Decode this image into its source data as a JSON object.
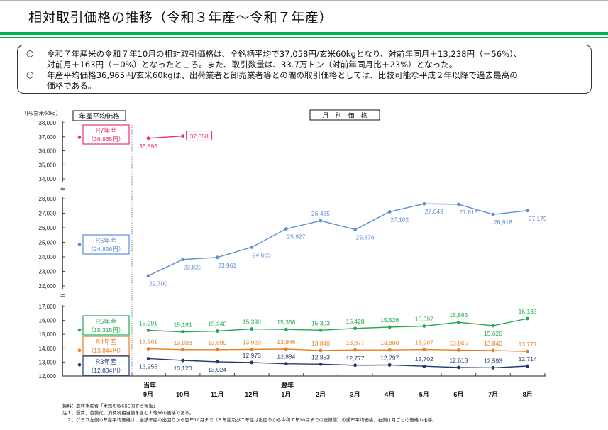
{
  "header": {
    "title": "相対取引価格の推移（令和３年産～令和７年産）"
  },
  "summary": {
    "bullet_glyph": "○",
    "lines": [
      "令和７年産米の令和７年10月の相対取引価格は、全銘柄平均で37,058円/玄米60kgとなり、対前年同月＋13,238円（＋56%）、",
      "対前月＋163円（＋0%）となったところ。また、取引数量は、33.7万トン（対前年同月比＋23%）となった。",
      "年産平均価格36,965円/玄米60kgは、出荷業者と卸売業者等との間の取引価格としては、比較可能な平成２年以降で過去最高の",
      "価格である。"
    ]
  },
  "footnotes": [
    "資料：農林水産省「米穀の取引に関する報告」",
    "注１：運賃、包装代、消費税相当額を含む１等米の価格である。",
    "　２：グラフ左側の年産平均価格は、当該年産の出回りから翌年10月まで（６年産及び７年産は出回りから令和７年10月までの速報値）の通年平均価格、右側は月ごとの価格の推移。"
  ],
  "chart_data": {
    "type": "line",
    "title": "相対取引価格の推移（令和３年産～令和７年産）",
    "ylabel": "（円/玄米60kg）",
    "xlabel": "",
    "left_panel_label": "年産平均価格",
    "right_panel_label": "月　別　価　格",
    "axis_break_glyph": "≈",
    "y_segments": [
      {
        "range": [
          34000,
          38000
        ],
        "ticks": [
          "38,000",
          "37,000",
          "36,000",
          "35,000",
          "34,000"
        ],
        "tick_values": [
          38000,
          37000,
          36000,
          35000,
          34000
        ]
      },
      {
        "range": [
          22000,
          28000
        ],
        "ticks": [
          "28,000",
          "27,000",
          "26,000",
          "25,000",
          "24,000",
          "23,000",
          "22,000"
        ],
        "tick_values": [
          28000,
          27000,
          26000,
          25000,
          24000,
          23000,
          22000
        ]
      },
      {
        "range": [
          12000,
          17000
        ],
        "ticks": [
          "17,000",
          "16,000",
          "15,000",
          "14,000",
          "13,000",
          "12,000"
        ],
        "tick_values": [
          17000,
          16000,
          15000,
          14000,
          13000,
          12000
        ]
      }
    ],
    "year_markers": [
      "当年",
      "翌年"
    ],
    "categories": [
      "9月",
      "10月",
      "11月",
      "12月",
      "1月",
      "2月",
      "3月",
      "4月",
      "5月",
      "6月",
      "7月",
      "8月"
    ],
    "grid": false,
    "series": [
      {
        "name": "R7年産",
        "annual_label": "R7年産",
        "annual_value_label": "（36,965円）",
        "annual_average": 36965,
        "color": "#e8326e",
        "segment": 0,
        "values": [
          36895,
          37058,
          null,
          null,
          null,
          null,
          null,
          null,
          null,
          null,
          null,
          null
        ],
        "labels": [
          "36,895",
          "37,058",
          "",
          "",
          "",
          "",
          "",
          "",
          "",
          "",
          "",
          ""
        ],
        "boxed_label_index": 1
      },
      {
        "name": "R6年産",
        "annual_label": "R6年産",
        "annual_value_label": "（24,856円）",
        "annual_average": 24856,
        "color": "#5b8fd6",
        "segment": 1,
        "values": [
          22700,
          23820,
          23961,
          24665,
          25927,
          26485,
          25876,
          27102,
          27649,
          27613,
          26918,
          27179
        ],
        "labels": [
          "22,700",
          "23,820",
          "23,961",
          "24,665",
          "25,927",
          "26,485",
          "25,876",
          "27,102",
          "27,649",
          "27,613",
          "26,918",
          "27,179"
        ]
      },
      {
        "name": "R5年産",
        "annual_label": "R5年産",
        "annual_value_label": "（15,315円）",
        "annual_average": 15315,
        "color": "#22a94f",
        "segment": 2,
        "values": [
          15291,
          15181,
          15240,
          15390,
          15358,
          15303,
          15428,
          15526,
          15597,
          15865,
          15626,
          16133
        ],
        "labels": [
          "15,291",
          "15,181",
          "15,240",
          "15,390",
          "15,358",
          "15,303",
          "15,428",
          "15,526",
          "15,597",
          "15,865",
          "15,626",
          "16,133"
        ]
      },
      {
        "name": "R4年産",
        "annual_label": "R4年産",
        "annual_value_label": "（13,844円）",
        "annual_average": 13844,
        "color": "#e67e22",
        "segment": 2,
        "values": [
          13961,
          13898,
          13899,
          13920,
          13946,
          13840,
          13877,
          13880,
          13907,
          13865,
          13840,
          13777
        ],
        "labels": [
          "13,961",
          "13,898",
          "13,899",
          "13,920",
          "13,946",
          "13,840",
          "13,877",
          "13,880",
          "13,907",
          "13,865",
          "13,840",
          "13,777"
        ]
      },
      {
        "name": "R3年産",
        "annual_label": "R3年産",
        "annual_value_label": "（12,804円）",
        "annual_average": 12804,
        "color": "#1f3a6e",
        "segment": 2,
        "values": [
          13255,
          13120,
          13024,
          12973,
          12884,
          12853,
          12777,
          12797,
          12702,
          12618,
          12593,
          12714
        ],
        "labels": [
          "13,255",
          "13,120",
          "13,024",
          "12,973",
          "12,884",
          "12,853",
          "12,777",
          "12,797",
          "12,702",
          "12,618",
          "12,593",
          "12,714"
        ]
      }
    ]
  }
}
